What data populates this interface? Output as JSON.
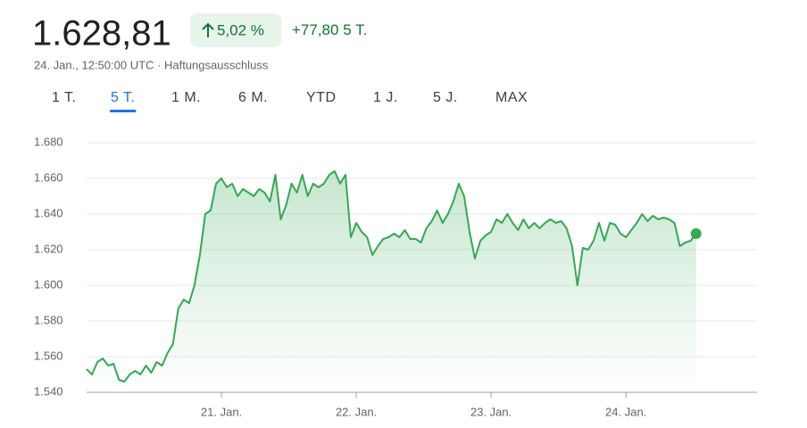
{
  "header": {
    "price": "1.628,81",
    "change_percent": "5,02 %",
    "change": "+77,80",
    "period": "5 T.",
    "timestamp": "24. Jan., 12:50:00 UTC · Haftungsausschluss"
  },
  "tabs": [
    "1 T.",
    "5 T.",
    "1 M.",
    "6 M.",
    "YTD",
    "1 J.",
    "5 J.",
    "MAX"
  ],
  "selected_tab_index": 1,
  "chart_data": {
    "type": "line",
    "color": "#34a853",
    "grid": true,
    "values": [
      1553,
      1550,
      1557,
      1559,
      1555,
      1556,
      1547,
      1546,
      1550,
      1552,
      1550,
      1555,
      1551,
      1557,
      1555,
      1562,
      1567,
      1587,
      1592,
      1590,
      1600,
      1617,
      1640,
      1642,
      1657,
      1660,
      1655,
      1657,
      1650,
      1654,
      1652,
      1650,
      1654,
      1652,
      1647,
      1662,
      1637,
      1645,
      1657,
      1652,
      1662,
      1650,
      1657,
      1655,
      1657,
      1662,
      1664,
      1657,
      1662,
      1627,
      1635,
      1630,
      1627,
      1617,
      1622,
      1626,
      1627,
      1629,
      1627,
      1631,
      1626,
      1626,
      1624,
      1632,
      1636,
      1642,
      1635,
      1640,
      1647,
      1657,
      1650,
      1630,
      1615,
      1625,
      1628,
      1630,
      1637,
      1635,
      1640,
      1635,
      1631,
      1637,
      1632,
      1635,
      1632,
      1635,
      1637,
      1635,
      1636,
      1632,
      1622,
      1600,
      1621,
      1620,
      1625,
      1635,
      1625,
      1635,
      1634,
      1629,
      1627,
      1631,
      1635,
      1640,
      1636,
      1639,
      1637,
      1638,
      1637,
      1635,
      1622,
      1624,
      1625,
      1629
    ],
    "xlim": [
      0,
      124.3
    ],
    "xticks": [
      {
        "value": 25,
        "label": "21. Jan."
      },
      {
        "value": 50,
        "label": "22. Jan."
      },
      {
        "value": 75,
        "label": "23. Jan."
      },
      {
        "value": 100,
        "label": "24. Jan."
      }
    ],
    "ylim": [
      1540,
      1680
    ],
    "yticks": [
      {
        "value": 1540,
        "label": "1.540"
      },
      {
        "value": 1560,
        "label": "1.560"
      },
      {
        "value": 1580,
        "label": "1.580"
      },
      {
        "value": 1600,
        "label": "1.600"
      },
      {
        "value": 1620,
        "label": "1.620"
      },
      {
        "value": 1640,
        "label": "1.640"
      },
      {
        "value": 1660,
        "label": "1.660"
      },
      {
        "value": 1680,
        "label": "1.680"
      }
    ]
  }
}
